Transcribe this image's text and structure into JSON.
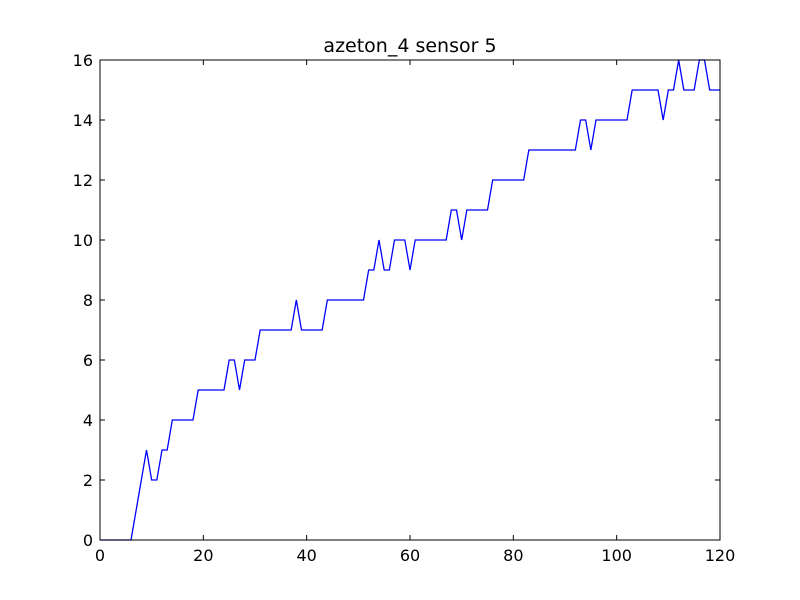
{
  "chart_data": {
    "type": "line",
    "title": "azeton_4 sensor 5",
    "xlabel": "",
    "ylabel": "",
    "xlim": [
      0,
      120
    ],
    "ylim": [
      0,
      16
    ],
    "xticks": [
      "0",
      "20",
      "40",
      "60",
      "80",
      "100",
      "120"
    ],
    "yticks": [
      "0",
      "2",
      "4",
      "6",
      "8",
      "10",
      "12",
      "14",
      "16"
    ],
    "grid": false,
    "legend": "none",
    "series": [
      {
        "color": "#0000ff",
        "x": [
          0,
          1,
          2,
          3,
          4,
          5,
          6,
          7,
          8,
          9,
          10,
          11,
          12,
          13,
          14,
          15,
          16,
          17,
          18,
          19,
          20,
          21,
          22,
          23,
          24,
          25,
          26,
          27,
          28,
          29,
          30,
          31,
          32,
          33,
          34,
          35,
          36,
          37,
          38,
          39,
          40,
          41,
          42,
          43,
          44,
          45,
          46,
          47,
          48,
          49,
          50,
          51,
          52,
          53,
          54,
          55,
          56,
          57,
          58,
          59,
          60,
          61,
          62,
          63,
          64,
          65,
          66,
          67,
          68,
          69,
          70,
          71,
          72,
          73,
          74,
          75,
          76,
          77,
          78,
          79,
          80,
          81,
          82,
          83,
          84,
          85,
          86,
          87,
          88,
          89,
          90,
          91,
          92,
          93,
          94,
          95,
          96,
          97,
          98,
          99,
          100,
          101,
          102,
          103,
          104,
          105,
          106,
          107,
          108,
          109,
          110,
          111,
          112,
          113,
          114,
          115,
          116,
          117,
          118,
          119,
          120
        ],
        "y": [
          0,
          0,
          0,
          0,
          0,
          0,
          0,
          1,
          2,
          3,
          2,
          2,
          3,
          3,
          4,
          4,
          4,
          4,
          4,
          5,
          5,
          5,
          5,
          5,
          5,
          6,
          6,
          5,
          6,
          6,
          6,
          7,
          7,
          7,
          7,
          7,
          7,
          7,
          8,
          7,
          7,
          7,
          7,
          7,
          8,
          8,
          8,
          8,
          8,
          8,
          8,
          8,
          9,
          9,
          10,
          9,
          9,
          10,
          10,
          10,
          9,
          10,
          10,
          10,
          10,
          10,
          10,
          10,
          11,
          11,
          10,
          11,
          11,
          11,
          11,
          11,
          12,
          12,
          12,
          12,
          12,
          12,
          12,
          13,
          13,
          13,
          13,
          13,
          13,
          13,
          13,
          13,
          13,
          14,
          14,
          13,
          14,
          14,
          14,
          14,
          14,
          14,
          14,
          15,
          15,
          15,
          15,
          15,
          15,
          14,
          15,
          15,
          16,
          15,
          15,
          15,
          16,
          16,
          15,
          15,
          15
        ]
      }
    ]
  }
}
